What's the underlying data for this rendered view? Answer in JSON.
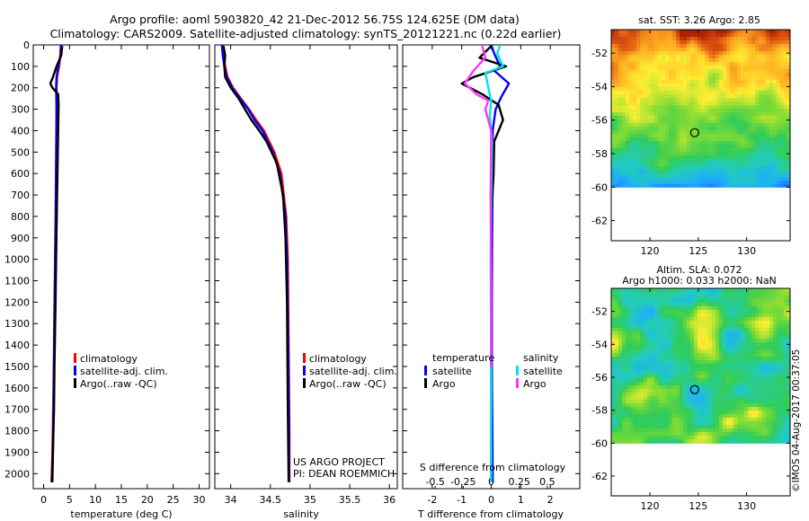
{
  "title": {
    "line1": "Argo profile: aoml 5903820_42 21-Dec-2012 56.75S 124.625E (DM data)",
    "line2": "Climatology: CARS2009. Satellite-adjusted climatology: synTS_20121221.nc (0.22d earlier)"
  },
  "credit": "US ARGO PROJECT",
  "pi": "PI: DEAN ROEMMICH",
  "watermark": "©IMOS 04-Aug-2017 00:37:05",
  "colors": {
    "climatology": "#ff0000",
    "satellite": "#0000ff",
    "argo": "#000000",
    "sal_satellite": "#00e5ee",
    "sal_argo": "#ff33ff"
  },
  "chart_data": [
    {
      "id": "temperature",
      "type": "line",
      "xlabel": "temperature (deg C)",
      "ylabel": "",
      "xlim": [
        -2,
        32
      ],
      "ylim": [
        2070,
        0
      ],
      "xticks": [
        0,
        5,
        10,
        15,
        20,
        25,
        30
      ],
      "yticks": [
        0,
        100,
        200,
        300,
        400,
        500,
        600,
        700,
        800,
        900,
        1000,
        1100,
        1200,
        1300,
        1400,
        1500,
        1600,
        1700,
        1800,
        1900,
        2000
      ],
      "legend": [
        "climatology",
        "satellite-adj. clim.",
        "Argo(..raw -QC)"
      ],
      "series": [
        {
          "name": "climatology",
          "color": "#ff0000",
          "x": [
            3.3,
            3.2,
            3.0,
            2.6,
            2.5,
            2.5,
            2.4,
            2.3,
            2.2,
            2.1,
            2.0,
            1.9,
            1.7,
            1.5
          ],
          "y": [
            0,
            50,
            100,
            150,
            200,
            300,
            500,
            800,
            1000,
            1200,
            1400,
            1600,
            1900,
            2040
          ]
        },
        {
          "name": "satellite-adj. clim.",
          "color": "#0000ff",
          "x": [
            3.4,
            3.3,
            2.8,
            2.5,
            2.4,
            2.5,
            2.45,
            2.35,
            2.25,
            2.15,
            2.05,
            1.95,
            1.8,
            1.6
          ],
          "y": [
            0,
            50,
            100,
            150,
            200,
            300,
            500,
            800,
            1000,
            1200,
            1400,
            1600,
            1900,
            2040
          ]
        },
        {
          "name": "Argo(..raw -QC)",
          "color": "#000000",
          "x": [
            3.6,
            3.4,
            2.5,
            1.8,
            1.3,
            1.7,
            2.8,
            2.9,
            2.8,
            2.6,
            2.4,
            2.3,
            2.1,
            2.0,
            1.8,
            1.7
          ],
          "y": [
            5,
            50,
            100,
            150,
            180,
            200,
            230,
            280,
            400,
            700,
            1000,
            1200,
            1500,
            1700,
            1900,
            2040
          ]
        }
      ]
    },
    {
      "id": "salinity",
      "type": "line",
      "xlabel": "salinity",
      "ylabel": "",
      "xlim": [
        33.8,
        36.1
      ],
      "ylim": [
        2070,
        0
      ],
      "xticks": [
        34,
        34.5,
        35,
        35.5,
        36
      ],
      "legend": [
        "climatology",
        "satellite-adj. clim.",
        "Argo(..raw -QC)"
      ],
      "series": [
        {
          "name": "climatology",
          "color": "#ff0000",
          "x": [
            33.9,
            33.91,
            33.93,
            33.96,
            34.03,
            34.13,
            34.23,
            34.32,
            34.42,
            34.55,
            34.64,
            34.7,
            34.72,
            34.73,
            34.74,
            34.74
          ],
          "y": [
            0,
            50,
            100,
            150,
            200,
            250,
            300,
            350,
            400,
            500,
            600,
            800,
            1000,
            1400,
            1800,
            2040
          ]
        },
        {
          "name": "satellite-adj. clim.",
          "color": "#0000ff",
          "x": [
            33.89,
            33.9,
            33.92,
            33.95,
            34.02,
            34.12,
            34.22,
            34.3,
            34.4,
            34.53,
            34.62,
            34.69,
            34.71,
            34.725,
            34.735,
            34.735
          ],
          "y": [
            0,
            50,
            100,
            150,
            200,
            250,
            300,
            350,
            400,
            500,
            600,
            800,
            1000,
            1400,
            1800,
            2040
          ]
        },
        {
          "name": "Argo(..raw -QC)",
          "color": "#000000",
          "x": [
            33.91,
            33.93,
            33.92,
            33.93,
            34.0,
            34.1,
            34.18,
            34.26,
            34.36,
            34.45,
            34.58,
            34.66,
            34.69,
            34.71,
            34.72,
            34.73
          ],
          "y": [
            5,
            50,
            100,
            150,
            200,
            250,
            300,
            350,
            400,
            450,
            550,
            700,
            900,
            1200,
            1700,
            2040
          ]
        }
      ]
    },
    {
      "id": "difference",
      "type": "line",
      "xlabel": "T difference from climatology",
      "title_bottom": "S difference from climatology",
      "xlim": [
        -3,
        3
      ],
      "ylim": [
        2070,
        0
      ],
      "xticks": [
        -2,
        -1,
        0,
        1,
        2
      ],
      "xtick_labels": [
        "-2",
        "-1",
        "0",
        "1",
        "2"
      ],
      "sticks_pos": [
        -1.9,
        -0.95,
        0,
        0.95,
        1.9
      ],
      "sticks_labels": [
        "-0.5",
        "-0.25",
        "0",
        "0.25",
        "0.5"
      ],
      "legend_temperature": {
        "title": "temperature",
        "items": [
          "satellite",
          "Argo"
        ]
      },
      "legend_salinity": {
        "title": "salinity",
        "items": [
          "satellite",
          "Argo"
        ]
      },
      "series": [
        {
          "name": "T satellite",
          "color": "#0000ff",
          "x": [
            0.0,
            0.1,
            0.3,
            0.1,
            0.6,
            0.35,
            0.15,
            0.05,
            0.05,
            0.03,
            0.02,
            0.02,
            0.04,
            0.05
          ],
          "y": [
            0,
            40,
            100,
            120,
            180,
            240,
            300,
            400,
            600,
            900,
            1200,
            1500,
            1800,
            2040
          ]
        },
        {
          "name": "T Argo",
          "color": "#000000",
          "x": [
            0.0,
            -0.4,
            0.5,
            -0.6,
            -1.0,
            -0.3,
            0.25,
            0.4,
            0.1,
            0.08,
            0.0,
            0.0,
            0.0,
            0.0
          ],
          "y": [
            5,
            60,
            100,
            150,
            180,
            230,
            280,
            350,
            450,
            600,
            800,
            1200,
            1700,
            2040
          ]
        },
        {
          "name": "S satellite",
          "color": "#00e5ee",
          "x": [
            0.3,
            0.2,
            0.4,
            -0.2,
            -0.1,
            0.0,
            -0.05,
            0.03,
            0.0,
            -0.02,
            -0.01,
            0.0,
            0.0,
            0.0
          ],
          "y": [
            0,
            40,
            100,
            130,
            200,
            260,
            330,
            450,
            700,
            1000,
            1300,
            1600,
            1800,
            2040
          ]
        },
        {
          "name": "S Argo",
          "color": "#ff33ff",
          "x": [
            -0.3,
            -0.2,
            -0.6,
            -0.9,
            -0.5,
            -0.1,
            -0.2,
            0.0,
            -0.02,
            0.0,
            0.0
          ],
          "y": [
            5,
            60,
            120,
            180,
            230,
            260,
            300,
            400,
            700,
            1100,
            1500
          ]
        }
      ]
    }
  ],
  "maps": [
    {
      "id": "sst",
      "type": "heatmap",
      "title_lines": [
        "sat. SST: 3.26 Argo: 2.85"
      ],
      "xticks": [
        120,
        125,
        130
      ],
      "yticks": [
        -52,
        -54,
        -56,
        -58,
        -60,
        -62
      ],
      "xlim": [
        116,
        134.5
      ],
      "ylim": [
        -63.2,
        -50.6
      ],
      "data_ymin": -60,
      "marker": {
        "lon": 124.625,
        "lat": -56.75
      }
    },
    {
      "id": "sla",
      "type": "heatmap",
      "title_lines": [
        "Altim. SLA: 0.072",
        "Argo h1000: 0.033 h2000: NaN"
      ],
      "xticks": [
        120,
        125,
        130
      ],
      "yticks": [
        -52,
        -54,
        -56,
        -58,
        -60,
        -62
      ],
      "xlim": [
        116,
        134.5
      ],
      "ylim": [
        -63.2,
        -50.6
      ],
      "data_ymin": -60,
      "marker": {
        "lon": 124.625,
        "lat": -56.75
      }
    }
  ]
}
